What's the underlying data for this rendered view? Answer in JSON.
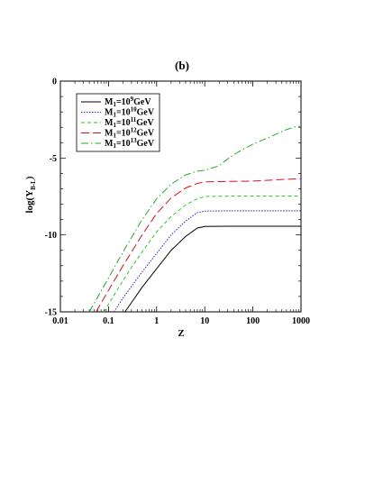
{
  "chart_data": {
    "type": "line",
    "title": "(b)",
    "xlabel": "Z",
    "ylabel_main": "log(Y",
    "ylabel_sub": "B-L",
    "ylabel_end": ")",
    "x_scale": "log",
    "xlim": [
      0.01,
      1000
    ],
    "ylim": [
      -15,
      0
    ],
    "x_ticks": [
      {
        "value": 0.01,
        "label": "0.01"
      },
      {
        "value": 0.1,
        "label": "0.1"
      },
      {
        "value": 1,
        "label": "1"
      },
      {
        "value": 10,
        "label": "10"
      },
      {
        "value": 100,
        "label": "100"
      },
      {
        "value": 1000,
        "label": "1000"
      }
    ],
    "y_ticks": [
      {
        "value": 0,
        "label": "0"
      },
      {
        "value": -5,
        "label": "-5"
      },
      {
        "value": -10,
        "label": "-10"
      },
      {
        "value": -15,
        "label": "-15"
      }
    ],
    "grid": false,
    "legend_position": "top-left",
    "series": [
      {
        "name": "M1=10^9GeV",
        "legend": {
          "pre": "M",
          "sub": "1",
          "mid": "=10",
          "sup": "9",
          "post": "GeV"
        },
        "color": "#000000",
        "dash": "",
        "points": [
          [
            0.22,
            -15
          ],
          [
            0.3,
            -14.4
          ],
          [
            0.5,
            -13.4
          ],
          [
            1,
            -12.2
          ],
          [
            2,
            -11
          ],
          [
            4,
            -10.1
          ],
          [
            7,
            -9.55
          ],
          [
            10,
            -9.45
          ],
          [
            30,
            -9.43
          ],
          [
            100,
            -9.43
          ],
          [
            1000,
            -9.43
          ]
        ]
      },
      {
        "name": "M1=10^10GeV",
        "legend": {
          "pre": "M",
          "sub": "1",
          "mid": "=10",
          "sup": "10",
          "post": "GeV"
        },
        "color": "#2222dd",
        "dash": "1.5,1.5",
        "points": [
          [
            0.13,
            -15
          ],
          [
            0.2,
            -14.1
          ],
          [
            0.5,
            -12.4
          ],
          [
            1,
            -11.2
          ],
          [
            2,
            -10
          ],
          [
            4,
            -9.1
          ],
          [
            7,
            -8.55
          ],
          [
            10,
            -8.45
          ],
          [
            30,
            -8.43
          ],
          [
            100,
            -8.43
          ],
          [
            1000,
            -8.43
          ]
        ]
      },
      {
        "name": "M1=10^11GeV",
        "legend": {
          "pre": "M",
          "sub": "1",
          "mid": "=10",
          "sup": "11",
          "post": "GeV"
        },
        "color": "#22cc22",
        "dash": "4,3",
        "points": [
          [
            0.08,
            -15
          ],
          [
            0.15,
            -13.6
          ],
          [
            0.3,
            -12.1
          ],
          [
            0.5,
            -11.1
          ],
          [
            1,
            -9.8
          ],
          [
            2,
            -8.8
          ],
          [
            4,
            -8.05
          ],
          [
            7,
            -7.65
          ],
          [
            10,
            -7.5
          ],
          [
            30,
            -7.48
          ],
          [
            100,
            -7.48
          ],
          [
            1000,
            -7.48
          ]
        ]
      },
      {
        "name": "M1=10^12GeV",
        "legend": {
          "pre": "M",
          "sub": "1",
          "mid": "=10",
          "sup": "12",
          "post": "GeV"
        },
        "color": "#dd1111",
        "dash": "9,4",
        "points": [
          [
            0.055,
            -15
          ],
          [
            0.1,
            -13.6
          ],
          [
            0.2,
            -12
          ],
          [
            0.5,
            -10
          ],
          [
            1,
            -8.6
          ],
          [
            2,
            -7.6
          ],
          [
            4,
            -6.95
          ],
          [
            7,
            -6.65
          ],
          [
            10,
            -6.55
          ],
          [
            30,
            -6.52
          ],
          [
            100,
            -6.5
          ],
          [
            500,
            -6.38
          ],
          [
            1000,
            -6.35
          ]
        ]
      },
      {
        "name": "M1=10^13GeV",
        "legend": {
          "pre": "M",
          "sub": "1",
          "mid": "=10",
          "sup": "13",
          "post": "GeV"
        },
        "color": "#22aa22",
        "dash": "8,3,1.5,3",
        "points": [
          [
            0.04,
            -15
          ],
          [
            0.1,
            -12.8
          ],
          [
            0.2,
            -11.1
          ],
          [
            0.5,
            -9
          ],
          [
            1,
            -7.65
          ],
          [
            2,
            -6.7
          ],
          [
            4,
            -6.1
          ],
          [
            7,
            -5.85
          ],
          [
            10,
            -5.8
          ],
          [
            20,
            -5.5
          ],
          [
            30,
            -5.05
          ],
          [
            50,
            -4.6
          ],
          [
            100,
            -4.1
          ],
          [
            200,
            -3.7
          ],
          [
            500,
            -3.15
          ],
          [
            800,
            -2.95
          ],
          [
            1000,
            -2.95
          ]
        ]
      }
    ]
  }
}
